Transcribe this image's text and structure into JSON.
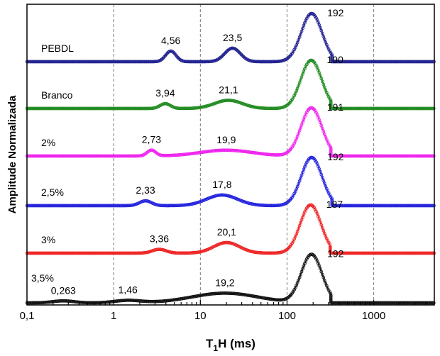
{
  "chart_data": {
    "type": "line",
    "title": "",
    "xlabel": "T1H (ms)",
    "xlabel_main": "T",
    "xlabel_sub": "1",
    "xlabel_rest": "H (ms)",
    "ylabel": "Amplitude Normalizada",
    "xscale": "log",
    "xlim": [
      0.1,
      5000
    ],
    "x_ticks": [
      {
        "value": 0.1,
        "label": "0,1"
      },
      {
        "value": 1,
        "label": "1"
      },
      {
        "value": 10,
        "label": "10"
      },
      {
        "value": 100,
        "label": "100"
      },
      {
        "value": 1000,
        "label": "1000"
      }
    ],
    "grid_x": [
      1,
      10,
      100,
      1000
    ],
    "grid": true,
    "legend": "none",
    "series": [
      {
        "name": "PEBDL",
        "color": "#1f1f8f",
        "peaks": [
          {
            "x": 4.56,
            "label": "4,56",
            "amp": 0.22,
            "width": 0.06
          },
          {
            "x": 23.5,
            "label": "23,5",
            "amp": 0.28,
            "width": 0.09
          },
          {
            "x": 192,
            "label": "192",
            "amp": 1.0,
            "width": 0.12
          }
        ],
        "x_start": 0.1,
        "x_end": 330,
        "tail_end": 5000
      },
      {
        "name": "Branco",
        "color": "#1e8a1e",
        "peaks": [
          {
            "x": 3.94,
            "label": "3,94",
            "amp": 0.1,
            "width": 0.06
          },
          {
            "x": 21.1,
            "label": "21,1",
            "amp": 0.17,
            "width": 0.16
          },
          {
            "x": 190,
            "label": "190",
            "amp": 1.0,
            "width": 0.12
          }
        ],
        "x_start": 0.1,
        "x_end": 320,
        "tail_end": 5000
      },
      {
        "name": "2%",
        "color": "#ee22ee",
        "peaks": [
          {
            "x": 2.73,
            "label": "2,73",
            "amp": 0.12,
            "width": 0.05
          },
          {
            "x": 19.9,
            "label": "19,9",
            "amp": 0.12,
            "width": 0.3
          },
          {
            "x": 191,
            "label": "191",
            "amp": 1.0,
            "width": 0.12
          }
        ],
        "x_start": 0.1,
        "x_end": 320,
        "tail_end": 5000
      },
      {
        "name": "2,5%",
        "color": "#2222dd",
        "peaks": [
          {
            "x": 2.33,
            "label": "2,33",
            "amp": 0.1,
            "width": 0.07
          },
          {
            "x": 17.8,
            "label": "17,8",
            "amp": 0.22,
            "width": 0.18
          },
          {
            "x": 192,
            "label": "192",
            "amp": 1.0,
            "width": 0.12
          }
        ],
        "x_start": 0.1,
        "x_end": 330,
        "tail_end": 5000
      },
      {
        "name": "3%",
        "color": "#ee2222",
        "peaks": [
          {
            "x": 3.36,
            "label": "3,36",
            "amp": 0.08,
            "width": 0.08
          },
          {
            "x": 20.1,
            "label": "20,1",
            "amp": 0.22,
            "width": 0.15
          },
          {
            "x": 187,
            "label": "187",
            "amp": 1.0,
            "width": 0.12
          }
        ],
        "x_start": 0.1,
        "x_end": 315,
        "tail_end": 5000
      },
      {
        "name": "3,5%",
        "color": "#111111",
        "peaks": [
          {
            "x": 0.263,
            "label": "0,263",
            "amp": 0.04,
            "width": 0.12
          },
          {
            "x": 1.46,
            "label": "1,46",
            "amp": 0.05,
            "width": 0.15
          },
          {
            "x": 19.2,
            "label": "19,2",
            "amp": 0.2,
            "width": 0.38
          },
          {
            "x": 192,
            "label": "192",
            "amp": 1.0,
            "width": 0.12
          }
        ],
        "x_start": 0.1,
        "x_end": 320,
        "tail_end": 5000
      }
    ]
  }
}
